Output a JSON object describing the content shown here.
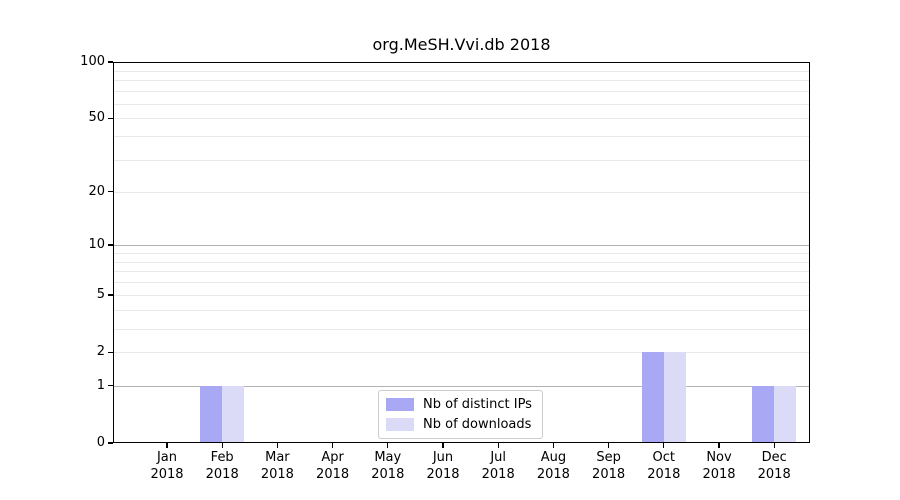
{
  "figure": {
    "background": "#ffffff"
  },
  "chart_data": {
    "type": "bar",
    "title": "org.MeSH.Vvi.db 2018",
    "xlabel": "",
    "ylabel": "",
    "categories": [
      "Jan\n2018",
      "Feb\n2018",
      "Mar\n2018",
      "Apr\n2018",
      "May\n2018",
      "Jun\n2018",
      "Jul\n2018",
      "Aug\n2018",
      "Sep\n2018",
      "Oct\n2018",
      "Nov\n2018",
      "Dec\n2018"
    ],
    "series": [
      {
        "name": "Nb of distinct IPs",
        "color": "#a8a8f5",
        "values": [
          0,
          1,
          0,
          0,
          0,
          0,
          0,
          0,
          0,
          2,
          0,
          1
        ]
      },
      {
        "name": "Nb of downloads",
        "color": "#dbdbf8",
        "values": [
          0,
          1,
          0,
          0,
          0,
          0,
          0,
          0,
          0,
          2,
          0,
          1
        ]
      }
    ],
    "yscale": "log1p",
    "ylim": [
      0,
      100
    ],
    "yticks": [
      0,
      1,
      2,
      5,
      10,
      20,
      50,
      100
    ],
    "grid": {
      "major": [
        1,
        10,
        100
      ],
      "minor": [
        2,
        3,
        4,
        5,
        6,
        7,
        8,
        9,
        20,
        30,
        40,
        50,
        60,
        70,
        80,
        90
      ],
      "major_color": "#b3b3b3",
      "minor_color": "#e9e9e9"
    },
    "legend": {
      "position": "lower center",
      "entries": [
        "Nb of distinct IPs",
        "Nb of downloads"
      ]
    },
    "axis_color": "#000000"
  }
}
